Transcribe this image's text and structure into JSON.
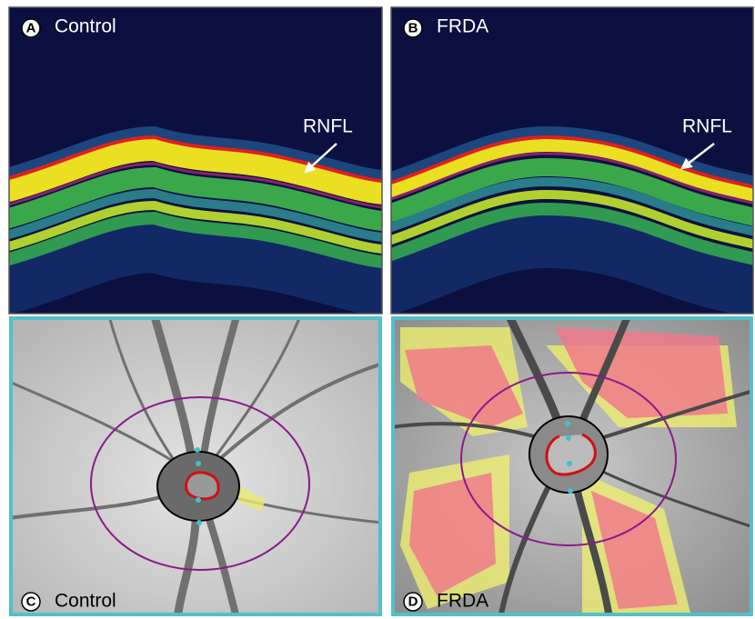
{
  "panels": [
    {
      "letter": "A",
      "label": "Control",
      "annotation": "RNFL"
    },
    {
      "letter": "B",
      "label": "FRDA",
      "annotation": "RNFL"
    },
    {
      "letter": "C",
      "label": "Control"
    },
    {
      "letter": "D",
      "label": "FRDA"
    }
  ]
}
